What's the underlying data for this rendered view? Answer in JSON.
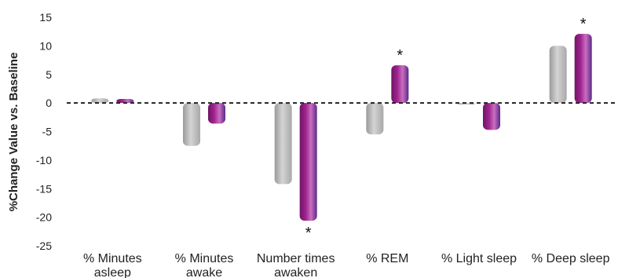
{
  "chart_data": {
    "type": "bar",
    "ylabel": "%Change Value vs. Baseline",
    "ylim": [
      -25,
      15
    ],
    "yticks": [
      15,
      10,
      5,
      0,
      -5,
      -10,
      -15,
      -20,
      -25
    ],
    "grid": false,
    "zero_line": "dashed",
    "categories": [
      [
        "% Minutes",
        "asleep"
      ],
      [
        "% Minutes",
        "awake"
      ],
      [
        "Number times",
        "awaken"
      ],
      [
        "% REM"
      ],
      [
        "% Light sleep"
      ],
      [
        "% Deep sleep"
      ]
    ],
    "series": [
      {
        "color": "#b3b3b3",
        "values": [
          0.8,
          -7.5,
          -14.2,
          -5.5,
          -0.3,
          10
        ]
      },
      {
        "color": "#8a1a7c",
        "values": [
          0.7,
          -3.6,
          -20.6,
          6.6,
          -4.7,
          12.1
        ]
      }
    ],
    "annotations": [
      {
        "category_index": 2,
        "series_index": 1,
        "text": "*"
      },
      {
        "category_index": 3,
        "series_index": 1,
        "text": "*"
      },
      {
        "category_index": 5,
        "series_index": 1,
        "text": "*"
      }
    ]
  }
}
